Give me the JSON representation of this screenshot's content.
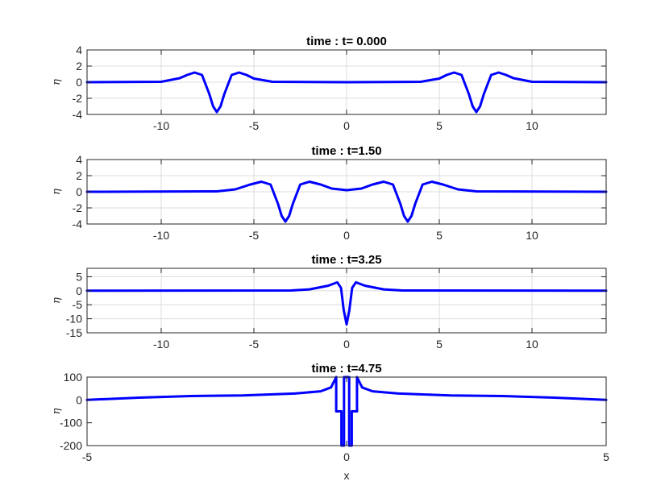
{
  "chart_data": [
    {
      "type": "line",
      "title": "time : t= 0.000",
      "ylabel": "η",
      "xlabel": "",
      "xlim": [
        -14,
        14
      ],
      "ylim": [
        -4,
        4
      ],
      "xticks": [
        -10,
        -5,
        0,
        5,
        10
      ],
      "xtick_labels": [
        "-10",
        "-5",
        "0",
        "5",
        "10"
      ],
      "yticks": [
        -4,
        -2,
        0,
        2,
        4
      ],
      "ytick_labels": [
        "-4",
        "-2",
        "0",
        "2",
        "4"
      ],
      "grid": true,
      "color": "#0000ff",
      "series": [
        {
          "x": [
            -14,
            -10,
            -9,
            -8.6,
            -8.2,
            -7.8,
            -7.4,
            -7.2,
            -7.0,
            -6.8,
            -6.6,
            -6.2,
            -5.8,
            -5.4,
            -5.0,
            -4,
            0,
            4,
            5.0,
            5.4,
            5.8,
            6.2,
            6.6,
            6.8,
            7.0,
            7.2,
            7.4,
            7.8,
            8.2,
            8.6,
            9.0,
            10,
            14
          ],
          "y": [
            0,
            0.05,
            0.5,
            0.9,
            1.2,
            0.9,
            -1.5,
            -3.0,
            -3.7,
            -3.0,
            -1.5,
            0.9,
            1.2,
            0.9,
            0.45,
            0.05,
            0,
            0.05,
            0.45,
            0.9,
            1.2,
            0.9,
            -1.5,
            -3.0,
            -3.7,
            -3.0,
            -1.5,
            0.9,
            1.2,
            0.9,
            0.5,
            0.05,
            0
          ]
        }
      ]
    },
    {
      "type": "line",
      "title": "time : t=1.50",
      "ylabel": "η",
      "xlabel": "",
      "xlim": [
        -14,
        14
      ],
      "ylim": [
        -4,
        4
      ],
      "xticks": [
        -10,
        -5,
        0,
        5,
        10
      ],
      "xtick_labels": [
        "-10",
        "-5",
        "0",
        "5",
        "10"
      ],
      "yticks": [
        -4,
        -2,
        0,
        2,
        4
      ],
      "ytick_labels": [
        "-4",
        "-2",
        "0",
        "2",
        "4"
      ],
      "grid": true,
      "color": "#0000ff",
      "series": [
        {
          "x": [
            -14,
            -7,
            -6,
            -5.2,
            -4.6,
            -4.1,
            -3.7,
            -3.5,
            -3.3,
            -3.1,
            -2.9,
            -2.5,
            -2.0,
            -1.4,
            -0.8,
            0,
            0.8,
            1.4,
            2.0,
            2.5,
            2.9,
            3.1,
            3.3,
            3.5,
            3.7,
            4.1,
            4.6,
            5.2,
            6,
            7,
            14
          ],
          "y": [
            0,
            0.05,
            0.3,
            0.9,
            1.25,
            0.9,
            -1.5,
            -3.0,
            -3.7,
            -3.0,
            -1.5,
            0.9,
            1.25,
            0.9,
            0.4,
            0.2,
            0.4,
            0.9,
            1.25,
            0.9,
            -1.5,
            -3.0,
            -3.7,
            -3.0,
            -1.5,
            0.9,
            1.25,
            0.9,
            0.3,
            0.05,
            0
          ]
        }
      ]
    },
    {
      "type": "line",
      "title": "time : t=3.25",
      "ylabel": "η",
      "xlabel": "",
      "xlim": [
        -14,
        14
      ],
      "ylim": [
        -15,
        8
      ],
      "xticks": [
        -10,
        -5,
        0,
        5,
        10
      ],
      "xtick_labels": [
        "-10",
        "-5",
        "0",
        "5",
        "10"
      ],
      "yticks": [
        -15,
        -10,
        -5,
        0,
        5
      ],
      "ytick_labels": [
        "-15",
        "-10",
        "-5",
        "0",
        "5"
      ],
      "grid": true,
      "color": "#0000ff",
      "series": [
        {
          "x": [
            -14,
            -3,
            -2,
            -1,
            -0.5,
            -0.3,
            -0.15,
            0,
            0.15,
            0.3,
            0.5,
            1,
            2,
            3,
            14
          ],
          "y": [
            0,
            0.1,
            0.5,
            1.8,
            3.0,
            1.0,
            -7,
            -12,
            -7,
            1.0,
            3.0,
            1.8,
            0.5,
            0.1,
            0
          ]
        }
      ]
    },
    {
      "type": "line",
      "title": "time : t=4.75",
      "ylabel": "η",
      "xlabel": "x",
      "xlim": [
        -5,
        5
      ],
      "ylim": [
        -200,
        100
      ],
      "xticks": [
        -5,
        0,
        5
      ],
      "xtick_labels": [
        "-5",
        "0",
        "5"
      ],
      "yticks": [
        -200,
        -100,
        0,
        100
      ],
      "ytick_labels": [
        "-200",
        "-100",
        "0",
        "100"
      ],
      "grid": false,
      "color": "#0000ff",
      "series": [
        {
          "x": [
            -5,
            -4,
            -3,
            -2,
            -1,
            -0.5,
            -0.3,
            -0.2,
            -0.2,
            -0.1,
            -0.1,
            -0.05,
            -0.05,
            0.05,
            0.05,
            0.1,
            0.1,
            0.2,
            0.2,
            0.3,
            0.5,
            1,
            2,
            3,
            4,
            5
          ],
          "y": [
            0,
            10,
            17,
            20,
            28,
            38,
            55,
            100,
            -50,
            -50,
            -200,
            -200,
            100,
            100,
            -200,
            -200,
            -50,
            -50,
            100,
            55,
            38,
            28,
            20,
            17,
            10,
            0
          ]
        }
      ]
    }
  ]
}
